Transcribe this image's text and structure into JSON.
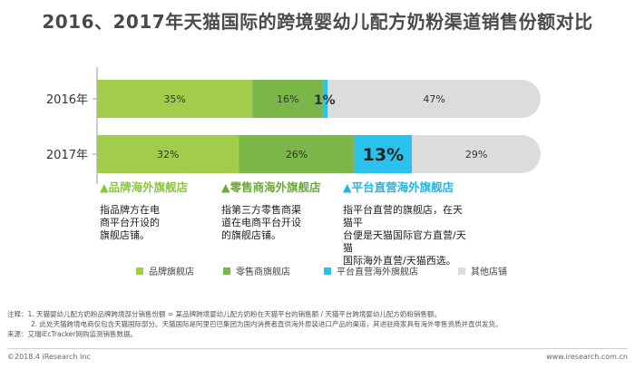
{
  "title": "2016、2017年天猫国际的跨境婴幼儿配方奶粉渠道销售份额对比",
  "chart_data": {
    "type": "bar",
    "orientation": "horizontal",
    "stacked": true,
    "percent": true,
    "categories": [
      "2016年",
      "2017年"
    ],
    "series": [
      {
        "name": "品牌旗舰店",
        "values": [
          35,
          32
        ],
        "labels": [
          "35%",
          "32%"
        ],
        "color": "#a2cd4b"
      },
      {
        "name": "零售商旗舰店",
        "values": [
          16,
          26
        ],
        "labels": [
          "16%",
          "26%"
        ],
        "color": "#7ab648"
      },
      {
        "name": "平台直营海外旗舰店",
        "values": [
          1,
          13
        ],
        "labels": [
          "1%",
          "13%"
        ],
        "color": "#2bc1ed"
      },
      {
        "name": "其他店铺",
        "values": [
          47,
          29
        ],
        "labels": [
          "47%",
          "29%"
        ],
        "color": "#dcdcdc"
      }
    ],
    "xlim": [
      0,
      100
    ],
    "grid": false,
    "legend_position": "bottom"
  },
  "annotations": [
    {
      "head": "▲品牌海外旗舰店",
      "desc": "指品牌方在电\n商平台开设的\n旗舰店铺。",
      "color": "#8cc63f"
    },
    {
      "head": "▲零售商海外旗舰店",
      "desc": "指第三方零售商渠\n道在电商平台开设\n的旗舰店铺。",
      "color": "#6aaa3a"
    },
    {
      "head": "▲平台直营海外旗舰店",
      "desc": "指平台直营的旗舰店，在天猫平\n台便是天猫国际官方直营/天猫\n国际海外直营/天猫西选。",
      "color": "#22b5e6"
    }
  ],
  "notes": [
    "注释：1. 天猫婴幼儿配方奶粉品牌跨境部分销售份额 = 某品牌跨境婴幼儿配方奶粉在天猫平台的销售额 / 天猫平台跨境婴幼儿配方奶粉销售额。",
    "2. 此处天猫跨境电商仅包含天猫国际部分。天猫国际是阿里巴巴集团为国内消费者直供海外原装进口产品的渠道，其进驻商家具有海外零售资质并直供发货。",
    "来源：艾瑞iEcTracker网购监测销售数据。"
  ],
  "footer": {
    "left": "©2018.4 iResearch Inc",
    "right": "www.iresearch.com.cn"
  }
}
